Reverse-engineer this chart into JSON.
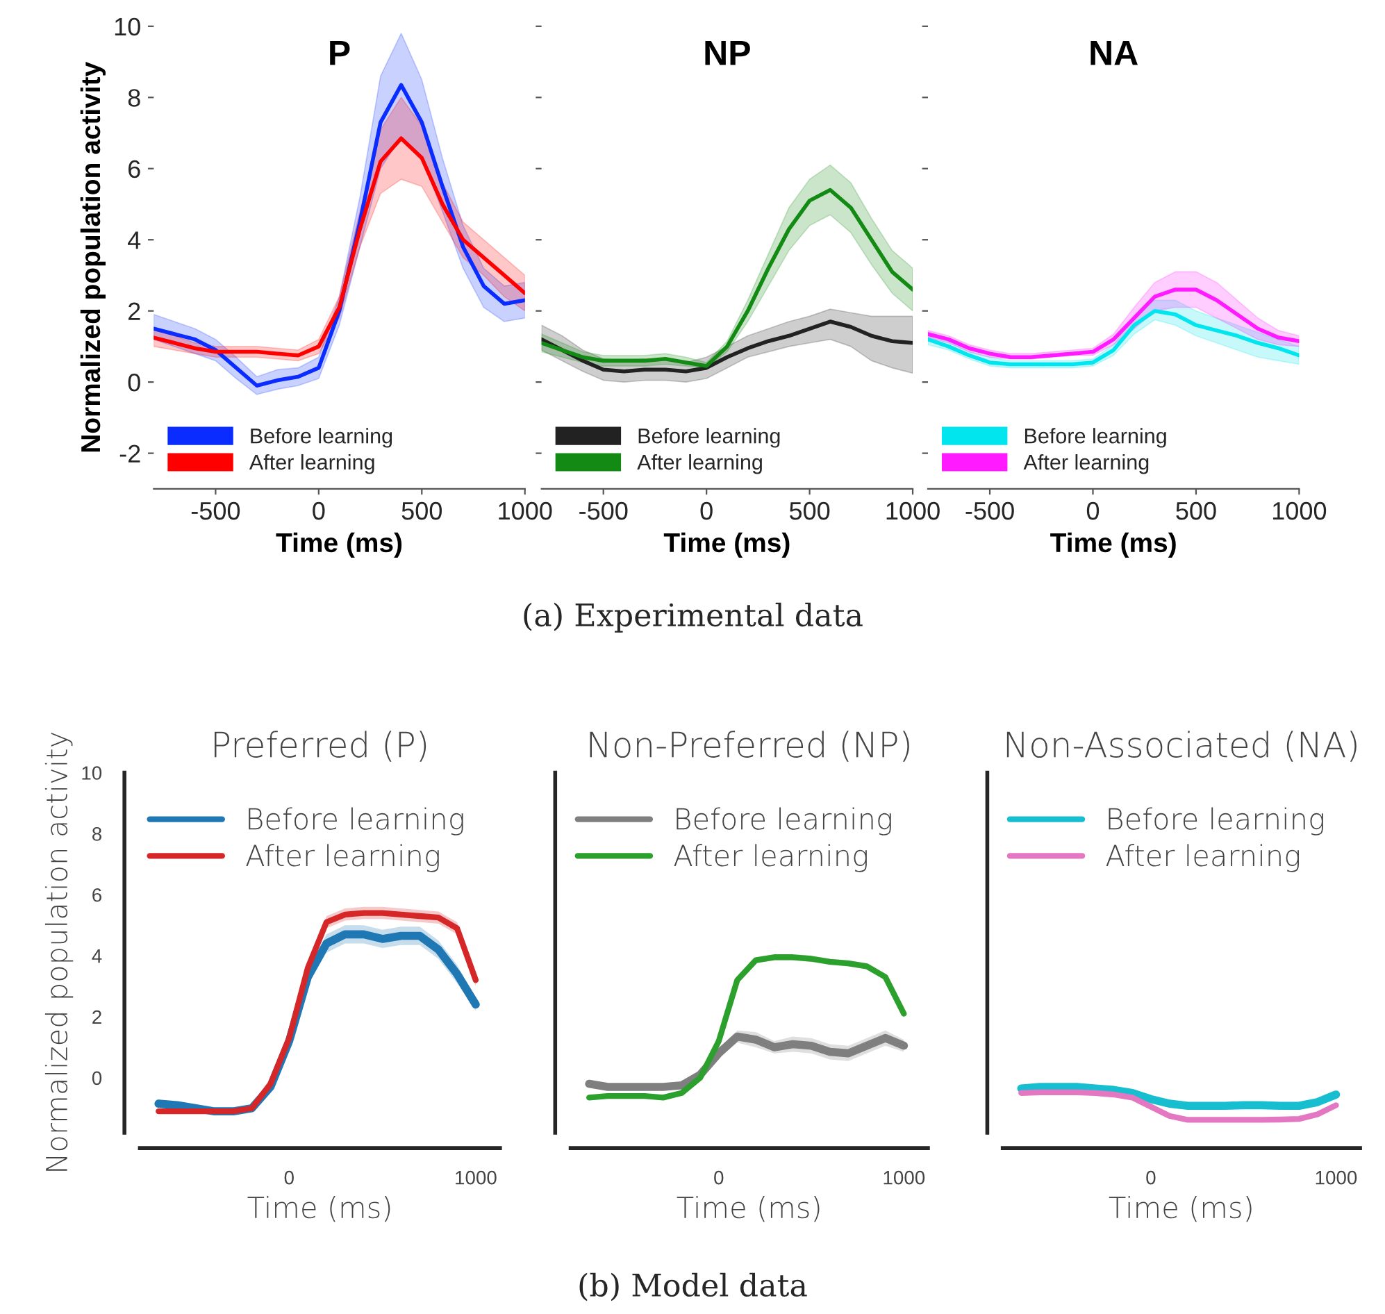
{
  "chart_data": [
    {
      "type": "line",
      "title": "P",
      "xlabel": "Time (ms)",
      "ylabel": "Normalized population activity",
      "x": [
        -800,
        -700,
        -600,
        -500,
        -400,
        -300,
        -200,
        -100,
        0,
        100,
        200,
        300,
        400,
        500,
        600,
        700,
        800,
        900,
        1000
      ],
      "xlim": [
        -800,
        1000
      ],
      "xticks": [
        -500,
        0,
        500,
        1000
      ],
      "ylim": [
        -3,
        10
      ],
      "yticks": [
        -2,
        0,
        2,
        4,
        6,
        8,
        10
      ],
      "legend": "bottom left",
      "grid": false,
      "series": [
        {
          "name": "Before learning",
          "color": "#0a2cff",
          "values": [
            1.5,
            1.35,
            1.2,
            0.9,
            0.4,
            -0.1,
            0.05,
            0.15,
            0.4,
            2,
            4.5,
            7.3,
            8.35,
            7.3,
            5.5,
            3.8,
            2.7,
            2.2,
            2.3
          ],
          "lower": [
            1.2,
            1.0,
            0.8,
            0.6,
            0.1,
            -0.35,
            -0.2,
            -0.1,
            0.1,
            1.6,
            3.8,
            6.0,
            6.9,
            6.3,
            4.8,
            3.2,
            2.1,
            1.7,
            1.8
          ],
          "upper": [
            1.9,
            1.7,
            1.5,
            1.2,
            0.7,
            0.15,
            0.35,
            0.4,
            0.7,
            2.4,
            5.2,
            8.6,
            9.8,
            8.5,
            6.3,
            4.4,
            3.2,
            2.7,
            2.8
          ]
        },
        {
          "name": "After learning",
          "color": "#ff0000",
          "values": [
            1.25,
            1.1,
            0.95,
            0.85,
            0.85,
            0.85,
            0.8,
            0.75,
            1.0,
            2.1,
            4.3,
            6.2,
            6.85,
            6.3,
            5.0,
            4.0,
            3.5,
            3.0,
            2.5
          ],
          "lower": [
            1.0,
            0.9,
            0.8,
            0.7,
            0.7,
            0.7,
            0.65,
            0.6,
            0.8,
            1.8,
            3.8,
            5.3,
            5.7,
            5.5,
            4.5,
            3.5,
            3.0,
            2.4,
            2.0
          ],
          "upper": [
            1.5,
            1.3,
            1.1,
            1.0,
            1.0,
            1.0,
            0.95,
            0.9,
            1.2,
            2.4,
            4.8,
            7.1,
            8.0,
            7.2,
            5.6,
            4.5,
            4.0,
            3.5,
            3.0
          ]
        }
      ]
    },
    {
      "type": "line",
      "title": "NP",
      "xlabel": "Time (ms)",
      "x": [
        -800,
        -700,
        -600,
        -500,
        -400,
        -300,
        -200,
        -100,
        0,
        100,
        200,
        300,
        400,
        500,
        600,
        700,
        800,
        900,
        1000
      ],
      "xlim": [
        -800,
        1000
      ],
      "xticks": [
        -500,
        0,
        500,
        1000
      ],
      "ylim": [
        -3,
        10
      ],
      "yticks": [
        -2,
        0,
        2,
        4,
        6,
        8,
        10
      ],
      "tick_labels": "x",
      "legend": "bottom left",
      "grid": false,
      "annotations": [
        "(a) Experimental data"
      ],
      "series": [
        {
          "name": "Before learning",
          "color": "#222222",
          "values": [
            1.2,
            0.9,
            0.6,
            0.35,
            0.3,
            0.35,
            0.35,
            0.3,
            0.4,
            0.7,
            0.95,
            1.15,
            1.3,
            1.5,
            1.7,
            1.55,
            1.3,
            1.15,
            1.1
          ],
          "lower": [
            0.9,
            0.6,
            0.3,
            0.05,
            0,
            0.05,
            0.05,
            0.0,
            0.1,
            0.4,
            0.7,
            0.85,
            1.0,
            1.1,
            1.2,
            1.0,
            0.6,
            0.4,
            0.25
          ],
          "upper": [
            1.6,
            1.3,
            0.9,
            0.65,
            0.6,
            0.65,
            0.65,
            0.55,
            0.7,
            1.0,
            1.3,
            1.5,
            1.7,
            1.85,
            2.05,
            1.95,
            1.85,
            1.85,
            1.85
          ]
        },
        {
          "name": "After learning",
          "color": "#138a13",
          "values": [
            1.1,
            0.9,
            0.7,
            0.6,
            0.6,
            0.6,
            0.65,
            0.55,
            0.45,
            1.0,
            2.0,
            3.2,
            4.3,
            5.1,
            5.4,
            4.9,
            4.0,
            3.1,
            2.6
          ],
          "lower": [
            0.85,
            0.7,
            0.55,
            0.45,
            0.45,
            0.45,
            0.5,
            0.45,
            0.4,
            0.85,
            1.7,
            2.7,
            3.7,
            4.4,
            4.7,
            4.2,
            3.3,
            2.5,
            2.0
          ],
          "upper": [
            1.35,
            1.1,
            0.85,
            0.75,
            0.75,
            0.75,
            0.8,
            0.7,
            0.55,
            1.15,
            2.3,
            3.6,
            4.9,
            5.7,
            6.1,
            5.6,
            4.6,
            3.7,
            3.2
          ]
        }
      ]
    },
    {
      "type": "line",
      "title": "NA",
      "xlabel": "Time (ms)",
      "x": [
        -800,
        -700,
        -600,
        -500,
        -400,
        -300,
        -200,
        -100,
        0,
        100,
        200,
        300,
        400,
        500,
        600,
        700,
        800,
        900,
        1000
      ],
      "xlim": [
        -800,
        1000
      ],
      "xticks": [
        -500,
        0,
        500,
        1000
      ],
      "ylim": [
        -3,
        10
      ],
      "yticks": [
        -2,
        0,
        2,
        4,
        6,
        8,
        10
      ],
      "tick_labels": "x",
      "legend": "bottom left",
      "grid": false,
      "series": [
        {
          "name": "Before learning",
          "color": "#00e5ee",
          "values": [
            1.2,
            1.0,
            0.75,
            0.55,
            0.5,
            0.5,
            0.5,
            0.5,
            0.55,
            0.9,
            1.6,
            2.0,
            1.9,
            1.6,
            1.45,
            1.3,
            1.1,
            0.95,
            0.75
          ],
          "lower": [
            1.05,
            0.9,
            0.65,
            0.45,
            0.4,
            0.4,
            0.4,
            0.4,
            0.45,
            0.75,
            1.35,
            1.75,
            1.6,
            1.3,
            1.1,
            0.9,
            0.7,
            0.6,
            0.5
          ],
          "upper": [
            1.35,
            1.15,
            0.85,
            0.7,
            0.6,
            0.6,
            0.6,
            0.6,
            0.65,
            1.05,
            1.85,
            2.3,
            2.3,
            2.0,
            1.8,
            1.6,
            1.4,
            1.2,
            1.0
          ]
        },
        {
          "name": "After learning",
          "color": "#ff1aff",
          "values": [
            1.35,
            1.2,
            0.95,
            0.8,
            0.7,
            0.7,
            0.75,
            0.8,
            0.85,
            1.2,
            1.8,
            2.4,
            2.6,
            2.6,
            2.3,
            1.9,
            1.5,
            1.25,
            1.15
          ],
          "lower": [
            1.25,
            1.1,
            0.85,
            0.7,
            0.65,
            0.65,
            0.7,
            0.75,
            0.75,
            1.05,
            1.5,
            2.0,
            2.1,
            2.1,
            1.8,
            1.5,
            1.2,
            1.05,
            1.0
          ],
          "upper": [
            1.45,
            1.3,
            1.05,
            0.9,
            0.8,
            0.8,
            0.85,
            0.9,
            0.95,
            1.35,
            2.1,
            2.8,
            3.1,
            3.1,
            2.8,
            2.3,
            1.8,
            1.45,
            1.3
          ]
        }
      ]
    },
    {
      "type": "line",
      "title": "Preferred (P)",
      "xlabel": "Time (ms)",
      "ylabel": "Normalized population activity",
      "x": [
        -700,
        -600,
        -500,
        -400,
        -300,
        -200,
        -100,
        0,
        100,
        200,
        300,
        400,
        500,
        600,
        700,
        800,
        900,
        1000
      ],
      "xlim": [
        -800,
        1130
      ],
      "xticks": [
        0,
        1000
      ],
      "ylim": [
        -1.8,
        10
      ],
      "yticks": [
        0,
        2,
        4,
        6,
        8,
        10
      ],
      "legend": "top right",
      "grid": false,
      "series": [
        {
          "name": "Before learning",
          "color": "#1f77b4",
          "values": [
            -0.85,
            -0.9,
            -1.0,
            -1.1,
            -1.1,
            -1.0,
            -0.3,
            1.2,
            3.3,
            4.4,
            4.7,
            4.7,
            4.55,
            4.65,
            4.65,
            4.2,
            3.4,
            2.4
          ],
          "lower": [
            -0.95,
            -1.0,
            -1.05,
            -1.15,
            -1.15,
            -1.05,
            -0.35,
            1.1,
            3.1,
            4.1,
            4.4,
            4.4,
            4.25,
            4.35,
            4.35,
            3.9,
            3.1,
            2.2
          ],
          "upper": [
            -0.75,
            -0.8,
            -0.95,
            -1.05,
            -1.05,
            -0.95,
            -0.25,
            1.3,
            3.5,
            4.7,
            5.0,
            5.0,
            4.85,
            4.95,
            4.95,
            4.5,
            3.7,
            2.6
          ]
        },
        {
          "name": "After learning",
          "color": "#d62728",
          "values": [
            -1.1,
            -1.1,
            -1.1,
            -1.1,
            -1.1,
            -1.0,
            -0.2,
            1.3,
            3.6,
            5.1,
            5.35,
            5.4,
            5.4,
            5.35,
            5.3,
            5.25,
            4.9,
            3.2
          ],
          "lower": [
            -1.15,
            -1.15,
            -1.15,
            -1.15,
            -1.15,
            -1.05,
            -0.25,
            1.2,
            3.45,
            4.9,
            5.15,
            5.2,
            5.2,
            5.15,
            5.1,
            5.05,
            4.7,
            3.0
          ],
          "upper": [
            -1.05,
            -1.05,
            -1.05,
            -1.05,
            -1.05,
            -0.95,
            -0.15,
            1.4,
            3.75,
            5.3,
            5.55,
            5.6,
            5.6,
            5.55,
            5.5,
            5.45,
            5.1,
            3.4
          ]
        }
      ]
    },
    {
      "type": "line",
      "title": "Non-Preferred (NP)",
      "xlabel": "Time (ms)",
      "x": [
        -700,
        -600,
        -500,
        -400,
        -300,
        -200,
        -100,
        0,
        100,
        200,
        300,
        400,
        500,
        600,
        700,
        800,
        900,
        1000
      ],
      "xlim": [
        -800,
        1130
      ],
      "xticks": [
        0,
        1000
      ],
      "ylim": [
        -1.8,
        10
      ],
      "yticks": [
        0,
        2,
        4,
        6,
        8,
        10
      ],
      "tick_labels": "x",
      "legend": "top right",
      "grid": false,
      "annotations": [
        "(b) Model data"
      ],
      "series": [
        {
          "name": "Before learning",
          "color": "#7f7f7f",
          "values": [
            -0.2,
            -0.3,
            -0.3,
            -0.3,
            -0.3,
            -0.25,
            0.1,
            0.8,
            1.35,
            1.25,
            1.0,
            1.1,
            1.05,
            0.85,
            0.8,
            1.05,
            1.3,
            1.05
          ],
          "lower": [
            -0.3,
            -0.4,
            -0.4,
            -0.4,
            -0.4,
            -0.35,
            0.0,
            0.65,
            1.15,
            1.0,
            0.8,
            0.85,
            0.8,
            0.6,
            0.55,
            0.8,
            1.05,
            0.85
          ],
          "upper": [
            -0.1,
            -0.2,
            -0.2,
            -0.2,
            -0.2,
            -0.15,
            0.2,
            0.95,
            1.55,
            1.5,
            1.2,
            1.35,
            1.3,
            1.1,
            1.05,
            1.3,
            1.55,
            1.25
          ]
        },
        {
          "name": "After learning",
          "color": "#2ca02c",
          "values": [
            -0.65,
            -0.6,
            -0.6,
            -0.6,
            -0.65,
            -0.5,
            0.0,
            1.2,
            3.2,
            3.85,
            3.95,
            3.95,
            3.9,
            3.8,
            3.75,
            3.65,
            3.3,
            2.1
          ],
          "lower": [
            -0.72,
            -0.68,
            -0.68,
            -0.68,
            -0.72,
            -0.58,
            -0.08,
            1.1,
            3.1,
            3.75,
            3.85,
            3.85,
            3.8,
            3.7,
            3.65,
            3.55,
            3.2,
            2.0
          ],
          "upper": [
            -0.58,
            -0.52,
            -0.52,
            -0.52,
            -0.58,
            -0.42,
            0.08,
            1.3,
            3.3,
            3.95,
            4.05,
            4.05,
            4.0,
            3.9,
            3.85,
            3.75,
            3.4,
            2.2
          ]
        }
      ]
    },
    {
      "type": "line",
      "title": "Non-Associated (NA)",
      "xlabel": "Time (ms)",
      "x": [
        -700,
        -600,
        -500,
        -400,
        -300,
        -200,
        -100,
        0,
        100,
        200,
        300,
        400,
        500,
        600,
        700,
        800,
        900,
        1000
      ],
      "xlim": [
        -800,
        1130
      ],
      "xticks": [
        0,
        1000
      ],
      "ylim": [
        -1.8,
        10
      ],
      "yticks": [
        0,
        2,
        4,
        6,
        8,
        10
      ],
      "tick_labels": "x",
      "legend": "top right",
      "grid": false,
      "series": [
        {
          "name": "Before learning",
          "color": "#17becf",
          "values": [
            -0.35,
            -0.3,
            -0.3,
            -0.3,
            -0.35,
            -0.4,
            -0.5,
            -0.7,
            -0.85,
            -0.92,
            -0.92,
            -0.92,
            -0.9,
            -0.9,
            -0.92,
            -0.92,
            -0.8,
            -0.55
          ]
        },
        {
          "name": "After learning",
          "color": "#e377c2",
          "values": [
            -0.5,
            -0.48,
            -0.48,
            -0.48,
            -0.5,
            -0.55,
            -0.65,
            -0.95,
            -1.25,
            -1.38,
            -1.38,
            -1.38,
            -1.38,
            -1.38,
            -1.37,
            -1.35,
            -1.2,
            -0.9
          ]
        }
      ]
    }
  ]
}
